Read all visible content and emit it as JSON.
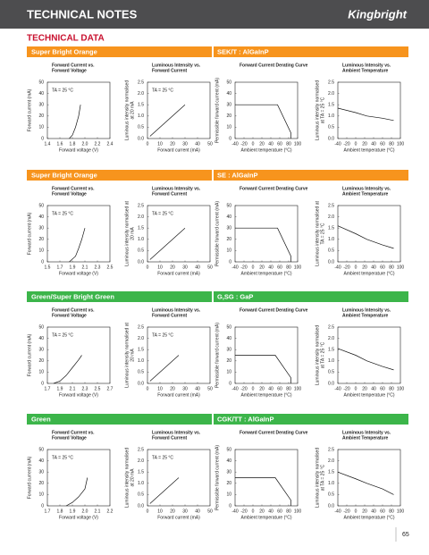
{
  "header": {
    "title": "TECHNICAL NOTES",
    "logo": "Kingbright"
  },
  "section_title": "TECHNICAL DATA",
  "sections": [
    {
      "name": "Super Bright Orange",
      "part": "SEK/T : AlGaInP",
      "color": "#f7941d",
      "charts": [
        {
          "type": "line",
          "title": [
            "Forward Current vs.",
            "Forward Voltage"
          ],
          "note": "TA = 25 °C",
          "xlabel": "Forward voltage (V)",
          "ylabel": [
            "Forward current (mA)"
          ],
          "xlim": [
            1.4,
            2.4
          ],
          "xticks": [
            1.4,
            1.6,
            1.8,
            {
              "value": 2,
              "label": "2.0"
            },
            2.2,
            2.4
          ],
          "ylim": [
            0,
            50
          ],
          "yticks": [
            0,
            10,
            20,
            30,
            40,
            50
          ],
          "x": [
            1.75,
            1.8,
            1.85,
            1.9,
            1.93
          ],
          "values": [
            0,
            3,
            10,
            20,
            30
          ]
        },
        {
          "type": "line",
          "title": [
            "Luminous Intensity vs.",
            "Forward Current"
          ],
          "note": "TA = 25 °C",
          "xlabel": "Forward current (mA)",
          "ylabel": [
            "Luminous intensity normalised",
            "at 20 mA"
          ],
          "xlim": [
            0,
            50
          ],
          "xticks": [
            0,
            10,
            20,
            30,
            40,
            50
          ],
          "ylim": [
            0,
            2.5
          ],
          "yticks": [
            {
              "value": 0,
              "label": "0.0"
            },
            0.5,
            {
              "value": 1,
              "label": "1.0"
            },
            1.5,
            {
              "value": 2,
              "label": "2.0"
            },
            2.5
          ],
          "x": [
            2,
            30
          ],
          "values": [
            0.1,
            1.5
          ]
        },
        {
          "type": "line",
          "title": [
            "Forward Current Derating  Curve"
          ],
          "xlabel": "Ambient temperature (°C)",
          "ylabel": [
            "Permissible forward current (mA)"
          ],
          "xlim": [
            -40,
            100
          ],
          "xticks": [
            -40,
            -20,
            0,
            20,
            40,
            60,
            80,
            100
          ],
          "ylim": [
            0,
            50
          ],
          "yticks": [
            0,
            10,
            20,
            30,
            40,
            50
          ],
          "x": [
            -40,
            55,
            85,
            85
          ],
          "values": [
            30,
            30,
            5,
            0
          ]
        },
        {
          "type": "line",
          "title": [
            "Luminous Intensity vs.",
            "Ambient Temperature"
          ],
          "xlabel": "Ambient temperature (°C)",
          "ylabel": [
            "Luminous intensity normalised",
            "at TA = 25 °C"
          ],
          "xlim": [
            -40,
            100
          ],
          "xticks": [
            -40,
            -20,
            0,
            20,
            40,
            60,
            80,
            100
          ],
          "ylim": [
            0,
            2.5
          ],
          "yticks": [
            {
              "value": 0,
              "label": "0.0"
            },
            0.5,
            {
              "value": 1,
              "label": "1.0"
            },
            1.5,
            {
              "value": 2,
              "label": "2.0"
            },
            2.5
          ],
          "x": [
            -40,
            0,
            25,
            60,
            85
          ],
          "values": [
            1.35,
            1.15,
            1.0,
            0.9,
            0.8
          ]
        }
      ]
    },
    {
      "name": "Super Bright Orange",
      "part": "SE : AlGaInP",
      "color": "#f7941d",
      "charts": [
        {
          "type": "line",
          "title": [
            "Forward Current vs.",
            "Forward Voltage"
          ],
          "note": "TA = 25 °C",
          "xlabel": "Forward voltage (V)",
          "ylabel": [
            "Forward current (mA)"
          ],
          "xlim": [
            1.5,
            2.5
          ],
          "xticks": [
            1.5,
            1.7,
            1.9,
            2.1,
            2.3,
            2.5
          ],
          "ylim": [
            0,
            50
          ],
          "yticks": [
            0,
            10,
            20,
            30,
            40,
            50
          ],
          "x": [
            1.85,
            1.95,
            2.0,
            2.05,
            2.1
          ],
          "values": [
            0,
            5,
            12,
            20,
            30
          ]
        },
        {
          "type": "line",
          "title": [
            "Luminous Intensity vs.",
            "Forward Current"
          ],
          "note": "TA = 25 °C",
          "xlabel": "Forward current (mA)",
          "ylabel": [
            "Luminous intensity normalised at",
            "20 mA"
          ],
          "xlim": [
            0,
            50
          ],
          "xticks": [
            0,
            10,
            20,
            30,
            40,
            50
          ],
          "ylim": [
            0,
            2.5
          ],
          "yticks": [
            {
              "value": 0,
              "label": "0.0"
            },
            0.5,
            {
              "value": 1,
              "label": "1.0"
            },
            1.5,
            {
              "value": 2,
              "label": "2.0"
            },
            2.5
          ],
          "x": [
            2,
            30
          ],
          "values": [
            0.1,
            1.5
          ]
        },
        {
          "type": "line",
          "title": [
            "Forward Current Derating  Curve"
          ],
          "xlabel": "Ambient temperature (°C)",
          "ylabel": [
            "Permissible forward current (mA)"
          ],
          "xlim": [
            -40,
            100
          ],
          "xticks": [
            -40,
            -20,
            0,
            20,
            40,
            60,
            80,
            100
          ],
          "ylim": [
            0,
            50
          ],
          "yticks": [
            0,
            10,
            20,
            30,
            40,
            50
          ],
          "x": [
            -40,
            55,
            85,
            85
          ],
          "values": [
            30,
            30,
            5,
            0
          ]
        },
        {
          "type": "line",
          "title": [
            "Luminous Intensity vs.",
            "Ambient Temperature"
          ],
          "xlabel": "Ambient temperature (°C)",
          "ylabel": [
            "Luminous intensity normalised at",
            "TA = 25 °C"
          ],
          "xlim": [
            -40,
            100
          ],
          "xticks": [
            -40,
            -20,
            0,
            20,
            40,
            60,
            80,
            100
          ],
          "ylim": [
            0,
            2.5
          ],
          "yticks": [
            {
              "value": 0,
              "label": "0.0"
            },
            0.5,
            {
              "value": 1,
              "label": "1.0"
            },
            1.5,
            {
              "value": 2,
              "label": "2.0"
            },
            2.5
          ],
          "x": [
            -40,
            0,
            25,
            60,
            85
          ],
          "values": [
            1.6,
            1.25,
            1.0,
            0.75,
            0.6
          ]
        }
      ]
    },
    {
      "name": "Green/Super Bright Green",
      "part": "G,SG : GaP",
      "color": "#3cb54a",
      "charts": [
        {
          "type": "line",
          "title": [
            "Forward Current vs.",
            "Forward Voltage"
          ],
          "note": "TA = 25 °C",
          "xlabel": "Forward voltage (V)",
          "ylabel": [
            "Forward current (mA)"
          ],
          "xlim": [
            1.7,
            2.7
          ],
          "xticks": [
            1.7,
            1.9,
            2.1,
            2.3,
            2.5,
            2.7
          ],
          "ylim": [
            0,
            50
          ],
          "yticks": [
            0,
            10,
            20,
            30,
            40,
            50
          ],
          "x": [
            1.8,
            1.9,
            2.0,
            2.1,
            2.2,
            2.25
          ],
          "values": [
            0,
            2,
            7,
            14,
            21,
            25
          ]
        },
        {
          "type": "line",
          "title": [
            "Luminous Intensity vs.",
            "Forward Current"
          ],
          "note": "TA = 25 °C",
          "xlabel": "Forward current (mA)",
          "ylabel": [
            "Luminous intensity normalised at",
            "20 mA"
          ],
          "xlim": [
            0,
            50
          ],
          "xticks": [
            0,
            10,
            20,
            30,
            40,
            50
          ],
          "ylim": [
            0,
            2.5
          ],
          "yticks": [
            {
              "value": 0,
              "label": "0.0"
            },
            0.5,
            {
              "value": 1,
              "label": "1.0"
            },
            1.5,
            {
              "value": 2,
              "label": "2.0"
            },
            2.5
          ],
          "x": [
            2,
            25
          ],
          "values": [
            0.1,
            1.25
          ]
        },
        {
          "type": "line",
          "title": [
            "Forward Current Derating  Curve"
          ],
          "xlabel": "Ambient temperature (°C)",
          "ylabel": [
            "Permissible forward current (mA)"
          ],
          "xlim": [
            -40,
            100
          ],
          "xticks": [
            -40,
            -20,
            0,
            20,
            40,
            60,
            80,
            100
          ],
          "ylim": [
            0,
            50
          ],
          "yticks": [
            0,
            10,
            20,
            30,
            40,
            50
          ],
          "x": [
            -40,
            50,
            85,
            85
          ],
          "values": [
            25,
            25,
            5,
            0
          ]
        },
        {
          "type": "line",
          "title": [
            "Luminous Intensity vs.",
            "Ambient Temperature"
          ],
          "xlabel": "Ambient temperature (°C)",
          "ylabel": [
            "Luminous intensity normalised",
            "at TA = 25 °C"
          ],
          "xlim": [
            -40,
            100
          ],
          "xticks": [
            -40,
            -20,
            0,
            20,
            40,
            60,
            80,
            100
          ],
          "ylim": [
            0,
            2.5
          ],
          "yticks": [
            {
              "value": 0,
              "label": "0.0"
            },
            0.5,
            {
              "value": 1,
              "label": "1.0"
            },
            1.5,
            {
              "value": 2,
              "label": "2.0"
            },
            2.5
          ],
          "x": [
            -40,
            0,
            25,
            60,
            85
          ],
          "values": [
            1.55,
            1.25,
            1.0,
            0.75,
            0.6
          ]
        }
      ]
    },
    {
      "name": "Green",
      "part": "CGK/TT : AlGaInP",
      "color": "#3cb54a",
      "charts": [
        {
          "type": "line",
          "title": [
            "Forward Current vs.",
            "Forward Voltage"
          ],
          "note": "TA = 25 °C",
          "xlabel": "Forward voltage (V)",
          "ylabel": [
            "Forward current (mA)"
          ],
          "xlim": [
            1.7,
            2.2
          ],
          "xticks": [
            1.7,
            1.8,
            1.9,
            {
              "value": 2,
              "label": "2.0"
            },
            2.1,
            2.2
          ],
          "ylim": [
            0,
            50
          ],
          "yticks": [
            0,
            10,
            20,
            30,
            40,
            50
          ],
          "x": [
            1.85,
            1.9,
            1.95,
            2.0,
            2.02
          ],
          "values": [
            0,
            3,
            8,
            15,
            25
          ]
        },
        {
          "type": "line",
          "title": [
            "Luminous Intensity vs.",
            "Forward Current"
          ],
          "note": "TA = 25 °C",
          "xlabel": "Forward current (mA)",
          "ylabel": [
            "Luminous intensity normalised",
            "at 20 mA"
          ],
          "xlim": [
            0,
            50
          ],
          "xticks": [
            0,
            10,
            20,
            30,
            40,
            50
          ],
          "ylim": [
            0,
            2.5
          ],
          "yticks": [
            {
              "value": 0,
              "label": "0.0"
            },
            0.5,
            {
              "value": 1,
              "label": "1.0"
            },
            1.5,
            {
              "value": 2,
              "label": "2.0"
            },
            2.5
          ],
          "x": [
            2,
            25
          ],
          "values": [
            0.1,
            1.25
          ]
        },
        {
          "type": "line",
          "title": [
            "Forward Current Derating  Curve"
          ],
          "xlabel": "Ambient temperature (°C)",
          "ylabel": [
            "Permissible forward current (mA)"
          ],
          "xlim": [
            -40,
            100
          ],
          "xticks": [
            -40,
            -20,
            0,
            20,
            40,
            60,
            80,
            100
          ],
          "ylim": [
            0,
            50
          ],
          "yticks": [
            0,
            10,
            20,
            30,
            40,
            50
          ],
          "x": [
            -40,
            50,
            85,
            85
          ],
          "values": [
            25,
            25,
            5,
            0
          ]
        },
        {
          "type": "line",
          "title": [
            "Luminous Intensity vs.",
            "Ambient Temperature"
          ],
          "xlabel": "Ambient temperature (°C)",
          "ylabel": [
            "Luminous intensity normalised",
            "at TA = 25 °C"
          ],
          "xlim": [
            -40,
            100
          ],
          "xticks": [
            -40,
            -20,
            0,
            20,
            40,
            60,
            80,
            100
          ],
          "ylim": [
            0,
            2.5
          ],
          "yticks": [
            {
              "value": 0,
              "label": "0.0"
            },
            0.5,
            {
              "value": 1,
              "label": "1.0"
            },
            1.5,
            {
              "value": 2,
              "label": "2.0"
            },
            2.5
          ],
          "x": [
            -40,
            0,
            25,
            60,
            85
          ],
          "values": [
            1.5,
            1.2,
            1.0,
            0.75,
            0.5
          ]
        }
      ]
    }
  ],
  "page_number": "65"
}
